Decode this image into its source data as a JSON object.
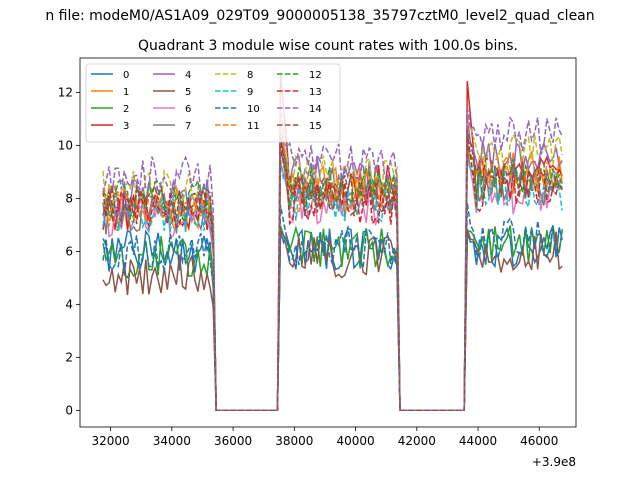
{
  "figure": {
    "suptitle": "n file: modeM0/AS1A09_029T09_9000005138_35797cztM0_level2_quad_clean"
  },
  "chart_data": {
    "type": "line",
    "title": "Quadrant 3 module wise count rates with 100.0s bins.",
    "xlabel": "",
    "ylabel": "",
    "x_offset_label": "+3.9e8",
    "xlim": [
      31000,
      47200
    ],
    "ylim": [
      -0.63,
      13.3
    ],
    "xticks": [
      32000,
      34000,
      36000,
      38000,
      40000,
      42000,
      44000,
      46000
    ],
    "yticks": [
      0,
      2,
      4,
      6,
      8,
      10,
      12
    ],
    "grid": false,
    "legend_position": "top-left",
    "legend_columns": 4,
    "colors": [
      "#1f77b4",
      "#ff7f0e",
      "#2ca02c",
      "#d62728",
      "#9467bd",
      "#8c564b",
      "#e377c2",
      "#7f7f7f",
      "#bcbd22",
      "#17becf",
      "#1f77b4",
      "#ff7f0e",
      "#2ca02c",
      "#d62728",
      "#9467bd",
      "#8c564b"
    ],
    "linestyles": [
      "solid",
      "solid",
      "solid",
      "solid",
      "solid",
      "solid",
      "solid",
      "solid",
      "dashed",
      "dashed",
      "dashed",
      "dashed",
      "dashed",
      "dashed",
      "dashed",
      "dashed"
    ],
    "segments": [
      {
        "x_start": 31750,
        "x_end": 35350,
        "bins": 37,
        "then_zero_until": 37550
      },
      {
        "x_start": 37550,
        "x_end": 41350,
        "bins": 39,
        "then_zero_until": 43650
      },
      {
        "x_start": 43650,
        "x_end": 46750,
        "bins": 32
      }
    ],
    "series": [
      {
        "name": "0",
        "level_1": 6.0,
        "level_2": 6.1,
        "level_3": 6.2,
        "peak": 6.8
      },
      {
        "name": "1",
        "level_1": 7.6,
        "level_2": 8.4,
        "level_3": 9.0,
        "peak": 10.2
      },
      {
        "name": "2",
        "level_1": 5.8,
        "level_2": 6.1,
        "level_3": 6.2,
        "peak": 7.0
      },
      {
        "name": "3",
        "level_1": 7.6,
        "level_2": 8.5,
        "level_3": 8.8,
        "peak": 12.6
      },
      {
        "name": "4",
        "level_1": 8.0,
        "level_2": 8.8,
        "level_3": 9.4,
        "peak": 10.9
      },
      {
        "name": "5",
        "level_1": 5.1,
        "level_2": 5.8,
        "level_3": 6.0,
        "peak": 6.6
      },
      {
        "name": "6",
        "level_1": 7.2,
        "level_2": 7.7,
        "level_3": 8.2,
        "peak": 9.6
      },
      {
        "name": "7",
        "level_1": 7.4,
        "level_2": 8.0,
        "level_3": 8.5,
        "peak": 9.8
      },
      {
        "name": "8",
        "level_1": 8.3,
        "level_2": 8.9,
        "level_3": 9.8,
        "peak": 11.0
      },
      {
        "name": "9",
        "level_1": 7.5,
        "level_2": 7.9,
        "level_3": 8.3,
        "peak": 9.5
      },
      {
        "name": "10",
        "level_1": 5.9,
        "level_2": 6.2,
        "level_3": 6.5,
        "peak": 7.6
      },
      {
        "name": "11",
        "level_1": 7.7,
        "level_2": 8.3,
        "level_3": 8.9,
        "peak": 10.5
      },
      {
        "name": "12",
        "level_1": 7.9,
        "level_2": 8.4,
        "level_3": 8.7,
        "peak": 10.0
      },
      {
        "name": "13",
        "level_1": 7.6,
        "level_2": 7.8,
        "level_3": 8.3,
        "peak": 10.3
      },
      {
        "name": "14",
        "level_1": 8.8,
        "level_2": 9.3,
        "level_3": 10.3,
        "peak": 11.2
      },
      {
        "name": "15",
        "level_1": 7.7,
        "level_2": 8.1,
        "level_3": 8.8,
        "peak": 10.6
      }
    ]
  }
}
